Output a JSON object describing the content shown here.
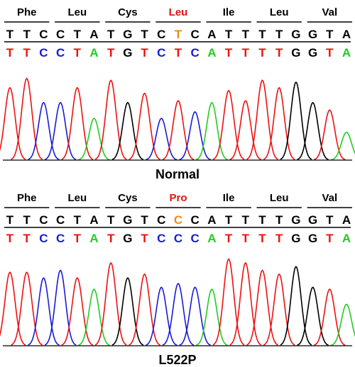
{
  "panels": [
    {
      "id": "normal",
      "caption": "Normal",
      "codons": [
        {
          "aa": "Phe",
          "highlight": false
        },
        {
          "aa": "Leu",
          "highlight": false
        },
        {
          "aa": "Cys",
          "highlight": false
        },
        {
          "aa": "Leu",
          "highlight": true
        },
        {
          "aa": "Ile",
          "highlight": false
        },
        {
          "aa": "Leu",
          "highlight": false
        },
        {
          "aa": "Val",
          "highlight": false
        }
      ],
      "ref_bases": [
        {
          "b": "T",
          "mut": false
        },
        {
          "b": "T",
          "mut": false
        },
        {
          "b": "C",
          "mut": false
        },
        {
          "b": "C",
          "mut": false
        },
        {
          "b": "T",
          "mut": false
        },
        {
          "b": "A",
          "mut": false
        },
        {
          "b": "T",
          "mut": false
        },
        {
          "b": "G",
          "mut": false
        },
        {
          "b": "T",
          "mut": false
        },
        {
          "b": "C",
          "mut": false
        },
        {
          "b": "T",
          "mut": true
        },
        {
          "b": "C",
          "mut": false
        },
        {
          "b": "A",
          "mut": false
        },
        {
          "b": "T",
          "mut": false
        },
        {
          "b": "T",
          "mut": false
        },
        {
          "b": "T",
          "mut": false
        },
        {
          "b": "T",
          "mut": false
        },
        {
          "b": "G",
          "mut": false
        },
        {
          "b": "G",
          "mut": false
        },
        {
          "b": "T",
          "mut": false
        },
        {
          "b": "A",
          "mut": false
        }
      ],
      "called_bases": [
        "T",
        "T",
        "C",
        "C",
        "T",
        "A",
        "T",
        "G",
        "T",
        "C",
        "T",
        "C",
        "A",
        "T",
        "T",
        "T",
        "T",
        "G",
        "G",
        "T",
        "A"
      ]
    },
    {
      "id": "mutant",
      "caption": "L522P",
      "codons": [
        {
          "aa": "Phe",
          "highlight": false
        },
        {
          "aa": "Leu",
          "highlight": false
        },
        {
          "aa": "Cys",
          "highlight": false
        },
        {
          "aa": "Pro",
          "highlight": true
        },
        {
          "aa": "Ile",
          "highlight": false
        },
        {
          "aa": "Leu",
          "highlight": false
        },
        {
          "aa": "Val",
          "highlight": false
        }
      ],
      "ref_bases": [
        {
          "b": "T",
          "mut": false
        },
        {
          "b": "T",
          "mut": false
        },
        {
          "b": "C",
          "mut": false
        },
        {
          "b": "C",
          "mut": false
        },
        {
          "b": "T",
          "mut": false
        },
        {
          "b": "A",
          "mut": false
        },
        {
          "b": "T",
          "mut": false
        },
        {
          "b": "G",
          "mut": false
        },
        {
          "b": "T",
          "mut": false
        },
        {
          "b": "C",
          "mut": false
        },
        {
          "b": "C",
          "mut": true
        },
        {
          "b": "C",
          "mut": false
        },
        {
          "b": "A",
          "mut": false
        },
        {
          "b": "T",
          "mut": false
        },
        {
          "b": "T",
          "mut": false
        },
        {
          "b": "T",
          "mut": false
        },
        {
          "b": "T",
          "mut": false
        },
        {
          "b": "G",
          "mut": false
        },
        {
          "b": "G",
          "mut": false
        },
        {
          "b": "T",
          "mut": false
        },
        {
          "b": "A",
          "mut": false
        }
      ],
      "called_bases": [
        "T",
        "T",
        "C",
        "C",
        "T",
        "A",
        "T",
        "G",
        "T",
        "C",
        "C",
        "C",
        "A",
        "T",
        "T",
        "T",
        "T",
        "G",
        "G",
        "T",
        "A"
      ]
    }
  ],
  "colors": {
    "A": "#22cc22",
    "C": "#1a1ad8",
    "G": "#000000",
    "T": "#ee1111",
    "highlight_aa": "#e51010",
    "mutation_base": "#f08a1c",
    "text": "#000000"
  }
}
